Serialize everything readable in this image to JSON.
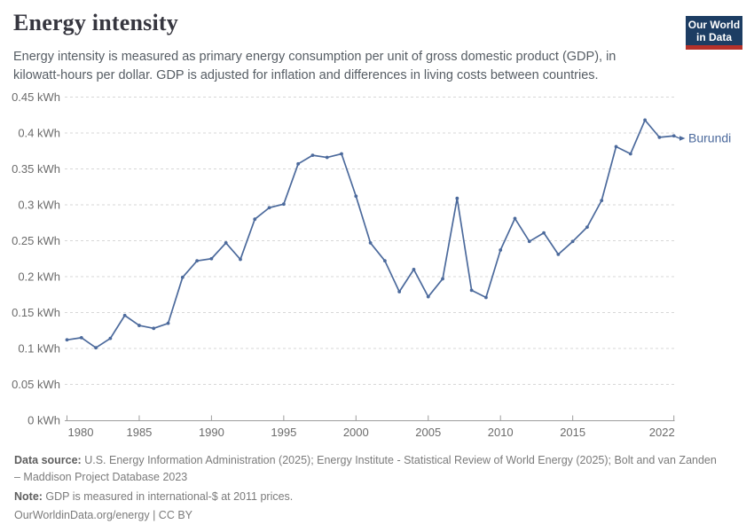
{
  "header": {
    "title": "Energy intensity",
    "subtitle": "Energy intensity is measured as primary energy consumption per unit of gross domestic product (GDP), in kilowatt-hours per dollar. GDP is adjusted for inflation and differences in living costs between countries.",
    "logo": {
      "line1": "Our World",
      "line2": "in Data"
    }
  },
  "chart_data": {
    "type": "line",
    "title": "Energy intensity",
    "xlabel": "",
    "ylabel": "",
    "unit": "kWh",
    "grid": "horizontal-dashed",
    "legend_position": "label-at-line-end",
    "xlim": [
      1980,
      2022
    ],
    "ylim": [
      0,
      0.45
    ],
    "xticks": [
      1980,
      1985,
      1990,
      1995,
      2000,
      2005,
      2010,
      2015,
      2022
    ],
    "yticks": [
      {
        "value": 0,
        "label": "0 kWh"
      },
      {
        "value": 0.05,
        "label": "0.05 kWh"
      },
      {
        "value": 0.1,
        "label": "0.1 kWh"
      },
      {
        "value": 0.15,
        "label": "0.15 kWh"
      },
      {
        "value": 0.2,
        "label": "0.2 kWh"
      },
      {
        "value": 0.25,
        "label": "0.25 kWh"
      },
      {
        "value": 0.3,
        "label": "0.3 kWh"
      },
      {
        "value": 0.35,
        "label": "0.35 kWh"
      },
      {
        "value": 0.4,
        "label": "0.4 kWh"
      },
      {
        "value": 0.45,
        "label": "0.45 kWh"
      }
    ],
    "x": [
      1980,
      1981,
      1982,
      1983,
      1984,
      1985,
      1986,
      1987,
      1988,
      1989,
      1990,
      1991,
      1992,
      1993,
      1994,
      1995,
      1996,
      1997,
      1998,
      1999,
      2000,
      2001,
      2002,
      2003,
      2004,
      2005,
      2006,
      2007,
      2008,
      2009,
      2010,
      2011,
      2012,
      2013,
      2014,
      2015,
      2016,
      2017,
      2018,
      2019,
      2020,
      2021,
      2022
    ],
    "series": [
      {
        "name": "Burundi",
        "color": "#4c6a9c",
        "values": [
          0.112,
          0.115,
          0.101,
          0.114,
          0.146,
          0.132,
          0.128,
          0.135,
          0.199,
          0.222,
          0.225,
          0.247,
          0.224,
          0.28,
          0.296,
          0.301,
          0.357,
          0.369,
          0.366,
          0.371,
          0.312,
          0.247,
          0.222,
          0.179,
          0.21,
          0.172,
          0.197,
          0.309,
          0.181,
          0.171,
          0.237,
          0.281,
          0.249,
          0.261,
          0.231,
          0.249,
          0.269,
          0.306,
          0.381,
          0.371,
          0.418,
          0.394,
          0.396
        ]
      }
    ]
  },
  "colors": {
    "line": "#4c6a9c",
    "grid": "#d7d7d7",
    "axis": "#9d9d9d",
    "tick_text": "#6b6b6b",
    "logo_bg": "#1d3d63",
    "logo_stripe": "#b5312a"
  },
  "footer": {
    "data_source_label": "Data source:",
    "data_source_text": " U.S. Energy Information Administration (2025); Energy Institute - Statistical Review of World Energy (2025); Bolt and van Zanden – Maddison Project Database 2023",
    "note_label": "Note:",
    "note_text": " GDP is measured in international-$ at 2011 prices.",
    "license": "OurWorldinData.org/energy | CC BY"
  }
}
